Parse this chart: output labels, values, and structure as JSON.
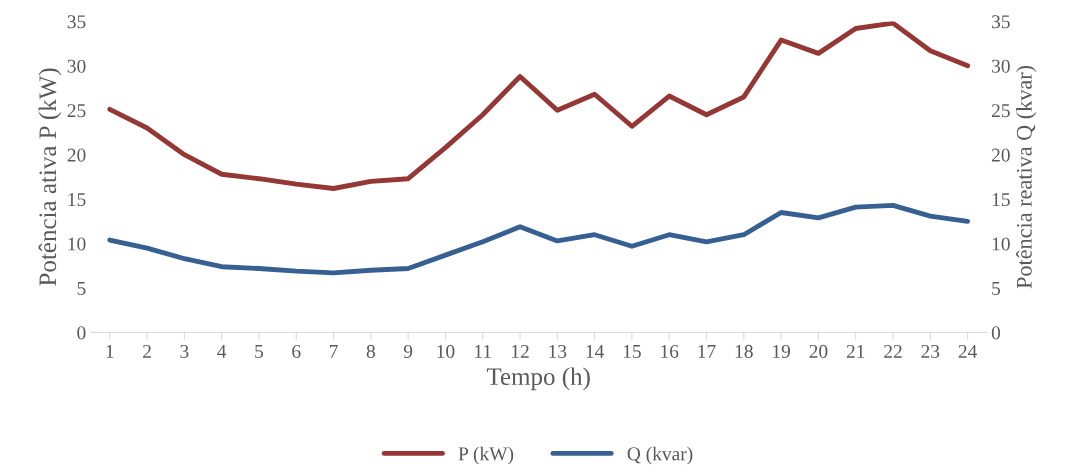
{
  "chart_data": {
    "type": "line",
    "xlabel": "Tempo (h)",
    "ylabel": "Potência ativa P (kW)",
    "y2label": "Potência reativa Q (kvar)",
    "categories": [
      "1",
      "2",
      "3",
      "4",
      "5",
      "6",
      "7",
      "8",
      "9",
      "10",
      "11",
      "12",
      "13",
      "14",
      "15",
      "16",
      "17",
      "18",
      "19",
      "20",
      "21",
      "22",
      "23",
      "24"
    ],
    "series": [
      {
        "name": "P (kW)",
        "color": "#953735",
        "values": [
          25.1,
          23.0,
          20.0,
          17.8,
          17.3,
          16.7,
          16.2,
          17.0,
          17.3,
          20.8,
          24.5,
          28.8,
          25.0,
          26.8,
          23.2,
          26.6,
          24.5,
          26.5,
          32.9,
          31.4,
          34.2,
          34.8,
          31.7,
          30.0
        ]
      },
      {
        "name": "Q (kvar)",
        "color": "#376092",
        "axis": "y2",
        "values": [
          10.4,
          9.5,
          8.3,
          7.4,
          7.2,
          6.9,
          6.7,
          7.0,
          7.2,
          8.7,
          10.2,
          11.9,
          10.3,
          11.0,
          9.7,
          11.0,
          10.2,
          11.0,
          13.5,
          12.9,
          14.1,
          14.3,
          13.1,
          12.5
        ]
      }
    ],
    "ylim": [
      0,
      35
    ],
    "yticks": [
      0,
      5,
      10,
      15,
      20,
      25,
      30,
      35
    ],
    "y2lim": [
      0,
      35
    ],
    "y2ticks": [
      0,
      5,
      10,
      15,
      20,
      25,
      30,
      35
    ],
    "grid": false,
    "legend": "bottom",
    "line_style": "solid",
    "marker": "none"
  }
}
